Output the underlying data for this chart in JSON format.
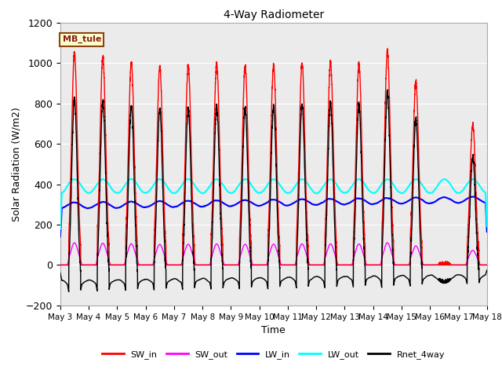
{
  "title": "4-Way Radiometer",
  "xlabel": "Time",
  "ylabel": "Solar Radiation (W/m2)",
  "ylim": [
    -200,
    1200
  ],
  "x_tick_labels": [
    "May 3",
    "May 4",
    "May 5",
    "May 6",
    "May 7",
    "May 8",
    "May 9",
    "May 10",
    "May 11",
    "May 12",
    "May 13",
    "May 14",
    "May 15",
    "May 16",
    "May 17",
    "May 18"
  ],
  "legend_labels": [
    "SW_in",
    "SW_out",
    "LW_in",
    "LW_out",
    "Rnet_4way"
  ],
  "legend_colors": [
    "#ff0000",
    "#ff00ff",
    "#0000ff",
    "#00ffff",
    "#000000"
  ],
  "site_label": "MB_tule",
  "site_label_facecolor": "#ffffcc",
  "site_label_edgecolor": "#8b4513",
  "background_color": "#ffffff",
  "sw_in_peaks": [
    1050,
    1030,
    1005,
    980,
    985,
    1000,
    985,
    990,
    1000,
    1000,
    998,
    1055,
    905,
    5,
    695
  ],
  "lw_in_base": 285,
  "lw_out_base": 390,
  "rnet_night": -100
}
